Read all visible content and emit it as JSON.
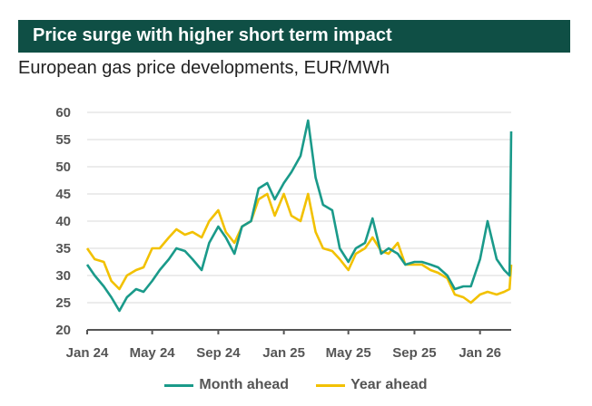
{
  "title": "Price surge with higher short term impact",
  "chart_data": {
    "type": "line",
    "title": "European gas price developments, EUR/MWh",
    "xlabel": "",
    "ylabel": "",
    "ylim": [
      20,
      60
    ],
    "yticks": [
      20,
      25,
      30,
      35,
      40,
      45,
      50,
      55,
      60
    ],
    "xticks": [
      {
        "date": "2024-01-01",
        "label": "Jan 24"
      },
      {
        "date": "2024-05-01",
        "label": "May 24"
      },
      {
        "date": "2024-09-01",
        "label": "Sep 24"
      },
      {
        "date": "2025-01-01",
        "label": "Jan 25"
      },
      {
        "date": "2025-05-01",
        "label": "May 25"
      },
      {
        "date": "2025-09-01",
        "label": "Sep 25"
      },
      {
        "date": "2026-01-01",
        "label": "Jan 26"
      }
    ],
    "xlim": [
      "2024-01-01",
      "2026-02-28"
    ],
    "grid": "horizontal",
    "legend": "bottom",
    "x": [
      "2024-01-01",
      "2024-01-15",
      "2024-02-01",
      "2024-02-15",
      "2024-03-01",
      "2024-03-15",
      "2024-04-01",
      "2024-04-15",
      "2024-05-01",
      "2024-05-15",
      "2024-06-01",
      "2024-06-15",
      "2024-07-01",
      "2024-07-15",
      "2024-08-01",
      "2024-08-15",
      "2024-09-01",
      "2024-09-15",
      "2024-10-01",
      "2024-10-15",
      "2024-11-01",
      "2024-11-15",
      "2024-12-01",
      "2024-12-15",
      "2025-01-01",
      "2025-01-15",
      "2025-02-01",
      "2025-02-15",
      "2025-03-01",
      "2025-03-15",
      "2025-04-01",
      "2025-04-15",
      "2025-05-01",
      "2025-05-15",
      "2025-06-01",
      "2025-06-15",
      "2025-07-01",
      "2025-07-15",
      "2025-08-01",
      "2025-08-15",
      "2025-09-01",
      "2025-09-15",
      "2025-10-01",
      "2025-10-15",
      "2025-11-01",
      "2025-11-15",
      "2025-12-01",
      "2025-12-15",
      "2026-01-01",
      "2026-01-15",
      "2026-02-01",
      "2026-02-15",
      "2026-02-25",
      "2026-02-28"
    ],
    "series": [
      {
        "name": "Month ahead",
        "color": "#1a9a8a",
        "values": [
          32,
          30,
          28,
          26,
          23.5,
          26,
          27.5,
          27,
          29,
          31,
          33,
          35,
          34.5,
          33,
          31,
          36,
          39,
          37,
          34,
          39,
          40,
          46,
          47,
          44,
          47,
          49,
          52,
          58.5,
          48,
          43,
          42,
          35,
          32.5,
          35,
          36,
          40.5,
          34,
          35,
          34,
          32,
          32.5,
          32.5,
          32,
          31.5,
          30,
          27.5,
          28,
          28,
          33,
          40,
          33,
          31,
          30,
          56.5
        ]
      },
      {
        "name": "Year ahead",
        "color": "#f2c100",
        "values": [
          35,
          33,
          32.5,
          29,
          27.5,
          30,
          31,
          31.5,
          35,
          35,
          37,
          38.5,
          37.5,
          38,
          37,
          40,
          42,
          38,
          36,
          39,
          40,
          44,
          45,
          41,
          45,
          41,
          40,
          45,
          38,
          35,
          34.5,
          33,
          31,
          34,
          35,
          37,
          34.5,
          34,
          36,
          32,
          32,
          32,
          31,
          30.5,
          29.5,
          26.5,
          26,
          25,
          26.5,
          27,
          26.5,
          27,
          27.5,
          32
        ]
      }
    ]
  }
}
